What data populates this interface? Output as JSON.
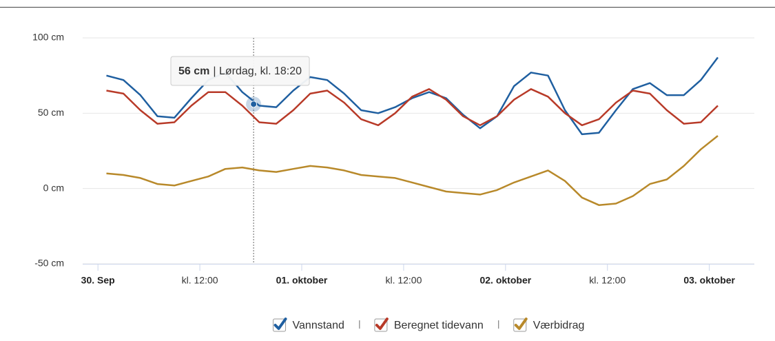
{
  "chart_data": {
    "type": "line",
    "x": [
      1,
      3,
      5,
      7,
      9,
      11,
      13,
      15,
      17,
      19,
      21,
      23,
      25,
      27,
      29,
      31,
      33,
      35,
      37,
      39,
      41,
      43,
      45,
      47,
      49,
      51,
      53,
      55,
      57,
      59,
      61,
      63,
      65,
      67,
      69,
      71,
      73
    ],
    "xlim": [
      -1.8,
      77.3
    ],
    "xticks": [
      {
        "value": 0,
        "label": "30. Sep"
      },
      {
        "value": 12,
        "label": "kl. 12:00"
      },
      {
        "value": 24,
        "label": "01. oktober"
      },
      {
        "value": 36,
        "label": "kl. 12:00"
      },
      {
        "value": 48,
        "label": "02. oktober"
      },
      {
        "value": 60,
        "label": "kl. 12:00"
      },
      {
        "value": 72,
        "label": "03. oktober"
      }
    ],
    "ylim": [
      -50,
      100
    ],
    "yticks": [
      {
        "value": -50,
        "label": "-50 cm"
      },
      {
        "value": 0,
        "label": "0 cm"
      },
      {
        "value": 50,
        "label": "50 cm"
      },
      {
        "value": 100,
        "label": "100 cm"
      }
    ],
    "grid": true,
    "legend": "bottom",
    "series": [
      {
        "name": "Vannstand",
        "color": "#1f5fa0",
        "values": [
          75,
          72,
          62,
          48,
          47,
          60,
          72,
          77,
          64,
          55,
          54,
          65,
          74,
          72,
          63,
          52,
          50,
          54,
          60,
          64,
          60,
          49,
          40,
          48,
          68,
          77,
          75,
          52,
          36,
          37,
          52,
          66,
          70,
          62,
          62,
          72,
          87
        ]
      },
      {
        "name": "Beregnet tidevann",
        "color": "#b83a28",
        "values": [
          65,
          63,
          52,
          43,
          44,
          55,
          64,
          64,
          55,
          44,
          43,
          52,
          63,
          65,
          57,
          46,
          42,
          50,
          61,
          66,
          59,
          48,
          42,
          48,
          59,
          66,
          61,
          50,
          42,
          46,
          57,
          65,
          63,
          52,
          43,
          44,
          55
        ]
      },
      {
        "name": "Værbidrag",
        "color": "#b8892a",
        "values": [
          10,
          9,
          7,
          3,
          2,
          5,
          8,
          13,
          14,
          12,
          11,
          13,
          15,
          14,
          12,
          9,
          8,
          7,
          4,
          1,
          -2,
          -3,
          -4,
          -1,
          4,
          8,
          12,
          5,
          -6,
          -11,
          -10,
          -5,
          3,
          6,
          15,
          26,
          35
        ]
      }
    ],
    "tooltip": {
      "x": 18.33,
      "value": 56,
      "label": "56 cm",
      "text": "| Lørdag, kl. 18:20"
    }
  }
}
